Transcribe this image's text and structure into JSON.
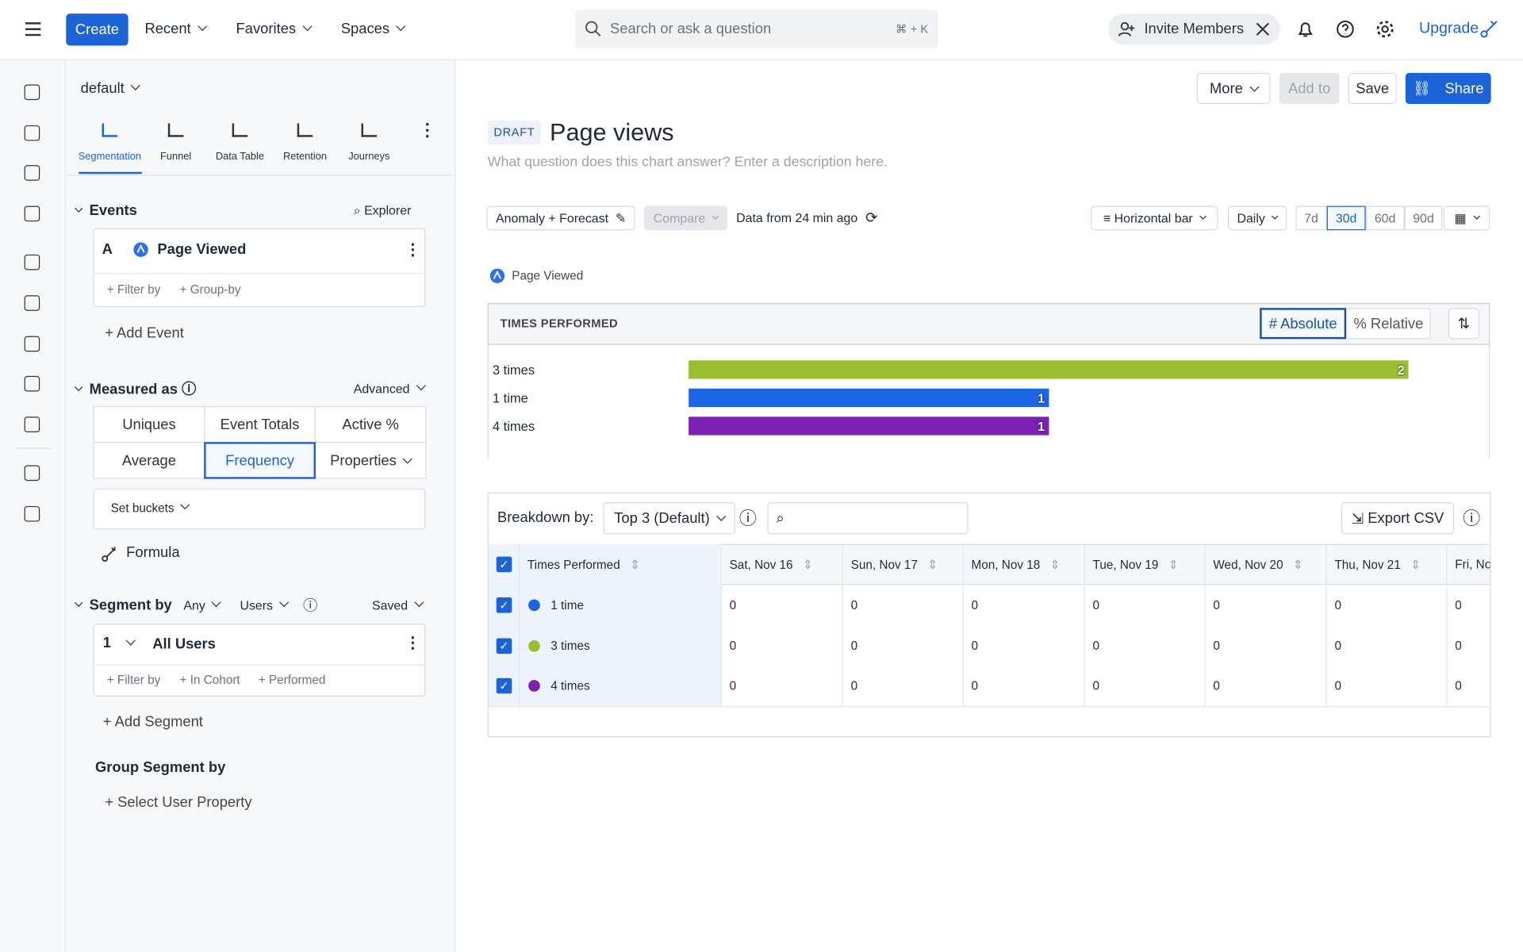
{
  "topbar": {
    "create": "Create",
    "menus": [
      "Recent",
      "Favorites",
      "Spaces"
    ],
    "search": "Search or ask a question",
    "shortcut": "⌘ + K",
    "invite": "Invite Members",
    "upgrade": "Upgrade"
  },
  "sidebar": {
    "project": "default",
    "tabs": [
      "Segmentation",
      "Funnel",
      "Data Table",
      "Retention",
      "Journeys"
    ],
    "events": {
      "title": "Events",
      "explorer": "Explorer",
      "letter": "A",
      "event": "Page Viewed",
      "filter": "+ Filter by",
      "group": "+ Group-by",
      "add": "+ Add Event"
    },
    "measured": {
      "title": "Measured as",
      "advanced": "Advanced",
      "options": [
        "Uniques",
        "Event Totals",
        "Active %",
        "Average",
        "Frequency",
        "Properties"
      ],
      "buckets": "Set buckets",
      "formula": "Formula"
    },
    "segment": {
      "title": "Segment by",
      "any": "Any",
      "users": "Users",
      "saved": "Saved",
      "number": "1",
      "name": "All Users",
      "actions": [
        "+ Filter by",
        "+ In Cohort",
        "+ Performed"
      ],
      "add": "+ Add Segment"
    },
    "group": {
      "title": "Group Segment by",
      "select": "+ Select User Property"
    }
  },
  "header": {
    "buttons": [
      "More",
      "Add to",
      "Save",
      "Share"
    ],
    "badge": "DRAFT",
    "title": "Page views",
    "description": "What question does this chart answer? Enter a description here."
  },
  "controls": {
    "anomaly": "Anomaly + Forecast",
    "compare": "Compare",
    "freshness": "Data from 24 min ago",
    "chart_type": "Horizontal bar",
    "interval": "Daily",
    "ranges": [
      "7d",
      "30d",
      "60d",
      "90d"
    ]
  },
  "chart_data": {
    "type": "bar",
    "orientation": "horizontal",
    "legend": "Page Viewed",
    "title": "TIMES PERFORMED",
    "toggles": [
      "# Absolute",
      "% Relative"
    ],
    "categories": [
      "3 times",
      "1 time",
      "4 times"
    ],
    "values": [
      2,
      1,
      1
    ],
    "colors": [
      "#9abe2f",
      "#1c66e6",
      "#7b22b4"
    ]
  },
  "table": {
    "breakdown_label": "Breakdown by:",
    "breakdown": "Top 3 (Default)",
    "export": "Export CSV",
    "columns": [
      "Times Performed",
      "Sat, Nov 16",
      "Sun, Nov 17",
      "Mon, Nov 18",
      "Tue, Nov 19",
      "Wed, Nov 20",
      "Thu, Nov 21",
      "Fri, No"
    ],
    "rows": [
      {
        "label": "1 time",
        "color": "#1c66e6",
        "cells": [
          0,
          0,
          0,
          0,
          0,
          0,
          0
        ]
      },
      {
        "label": "3 times",
        "color": "#9abe2f",
        "cells": [
          0,
          0,
          0,
          0,
          0,
          0,
          0
        ]
      },
      {
        "label": "4 times",
        "color": "#7b22b4",
        "cells": [
          0,
          0,
          0,
          0,
          0,
          0,
          0
        ]
      }
    ]
  }
}
